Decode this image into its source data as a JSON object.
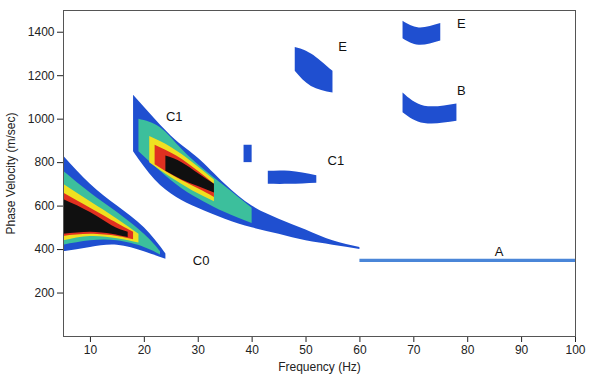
{
  "chart_data": {
    "type": "area",
    "xlabel": "Frequency (Hz)",
    "ylabel": "Phase Velocity (m/sec)",
    "xlim": [
      5,
      100
    ],
    "ylim": [
      0,
      1500
    ],
    "xticks": [
      10,
      20,
      30,
      40,
      50,
      60,
      70,
      80,
      90,
      100
    ],
    "yticks": [
      200,
      400,
      600,
      800,
      1000,
      1200,
      1400
    ],
    "grid": false,
    "series": [
      {
        "color": "#1f4fd0",
        "x": [
          5,
          10,
          15,
          20,
          24
        ],
        "lower": [
          390,
          410,
          420,
          390,
          355
        ],
        "upper": [
          830,
          700,
          600,
          500,
          380
        ]
      },
      {
        "color": "#3cbf9c",
        "x": [
          5,
          10,
          15,
          20,
          23
        ],
        "lower": [
          420,
          440,
          440,
          410,
          375
        ],
        "upper": [
          760,
          660,
          570,
          470,
          390
        ]
      },
      {
        "color": "#f0e020",
        "x": [
          5,
          10,
          15,
          19
        ],
        "lower": [
          440,
          460,
          450,
          430
        ],
        "upper": [
          700,
          620,
          540,
          470
        ]
      },
      {
        "color": "#e03020",
        "x": [
          5,
          10,
          15,
          18
        ],
        "lower": [
          460,
          470,
          460,
          445
        ],
        "upper": [
          660,
          590,
          520,
          480
        ]
      },
      {
        "color": "#101010",
        "x": [
          5,
          10,
          14,
          17
        ],
        "lower": [
          470,
          480,
          470,
          455
        ],
        "upper": [
          630,
          570,
          510,
          480
        ]
      },
      {
        "color": "#1f4fd0",
        "x": [
          18,
          22,
          26,
          30,
          35,
          40,
          45,
          50,
          55,
          60
        ],
        "lower": [
          850,
          720,
          640,
          590,
          540,
          500,
          470,
          440,
          420,
          400
        ],
        "upper": [
          1110,
          1000,
          900,
          820,
          700,
          600,
          540,
          490,
          440,
          410
        ]
      },
      {
        "color": "#3cbf9c",
        "x": [
          19,
          23,
          27,
          31,
          35,
          40
        ],
        "lower": [
          850,
          760,
          680,
          620,
          570,
          520
        ],
        "upper": [
          1000,
          960,
          860,
          770,
          690,
          590
        ]
      },
      {
        "color": "#f0e020",
        "x": [
          21,
          25,
          29,
          33
        ],
        "lower": [
          800,
          730,
          670,
          620
        ],
        "upper": [
          920,
          870,
          800,
          720
        ]
      },
      {
        "color": "#e03020",
        "x": [
          22,
          26,
          30,
          33
        ],
        "lower": [
          790,
          730,
          680,
          640
        ],
        "upper": [
          880,
          830,
          760,
          700
        ]
      },
      {
        "color": "#101010",
        "x": [
          24,
          27,
          30,
          33
        ],
        "lower": [
          760,
          720,
          690,
          660
        ],
        "upper": [
          830,
          800,
          750,
          700
        ]
      },
      {
        "color": "#1f4fd0",
        "x": [
          43,
          47,
          52
        ],
        "lower": [
          700,
          700,
          705
        ],
        "upper": [
          760,
          760,
          740
        ]
      },
      {
        "color": "#1f4fd0",
        "x": [
          38.5,
          40
        ],
        "lower": [
          800,
          800
        ],
        "upper": [
          880,
          880
        ]
      },
      {
        "color": "#1f4fd0",
        "x": [
          48,
          51,
          55
        ],
        "lower": [
          1220,
          1150,
          1120
        ],
        "upper": [
          1330,
          1300,
          1220
        ]
      },
      {
        "color": "#1f4fd0",
        "x": [
          68,
          71,
          75
        ],
        "lower": [
          1370,
          1340,
          1360
        ],
        "upper": [
          1450,
          1420,
          1440
        ]
      },
      {
        "color": "#1f4fd0",
        "x": [
          68,
          72,
          78
        ],
        "lower": [
          1030,
          980,
          990
        ],
        "upper": [
          1120,
          1060,
          1070
        ]
      },
      {
        "color": "#4a86d8",
        "x": [
          60,
          100
        ],
        "lower": [
          340,
          340
        ],
        "upper": [
          355,
          355
        ]
      }
    ],
    "annotations": [
      {
        "text": "C0",
        "x": 29,
        "y": 350
      },
      {
        "text": "C1",
        "x": 24,
        "y": 1010
      },
      {
        "text": "C1",
        "x": 54,
        "y": 810
      },
      {
        "text": "E",
        "x": 56,
        "y": 1335
      },
      {
        "text": "E",
        "x": 78,
        "y": 1440
      },
      {
        "text": "B",
        "x": 78,
        "y": 1130
      },
      {
        "text": "A",
        "x": 85,
        "y": 390
      }
    ]
  }
}
